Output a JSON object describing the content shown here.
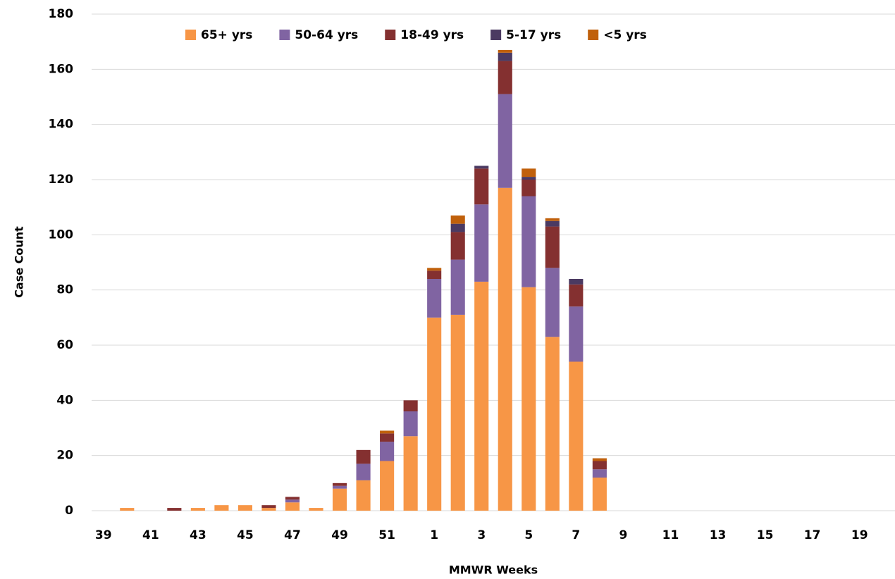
{
  "chart_data": {
    "type": "stacked_bar",
    "xlabel": "MMWR Weeks",
    "ylabel": "Case Count",
    "categories": [
      "39",
      null,
      "41",
      null,
      "43",
      null,
      "45",
      null,
      "47",
      null,
      "49",
      null,
      "51",
      null,
      "1",
      null,
      "3",
      null,
      "5",
      null,
      "7",
      null,
      "9",
      null,
      "11",
      null,
      "13",
      null,
      "15",
      null,
      "17",
      null,
      "19",
      null
    ],
    "series": [
      {
        "name": "65+ yrs",
        "color": "#f79646",
        "values": [
          0,
          1,
          0,
          0,
          1,
          2,
          2,
          1,
          3,
          1,
          8,
          11,
          18,
          27,
          70,
          71,
          83,
          117,
          81,
          63,
          54,
          12,
          0,
          0,
          0,
          0,
          0,
          0,
          0,
          0,
          0,
          0,
          0,
          0
        ]
      },
      {
        "name": "50-64 yrs",
        "color": "#8064a2",
        "values": [
          0,
          0,
          0,
          0,
          0,
          0,
          0,
          0,
          1,
          0,
          1,
          6,
          7,
          9,
          14,
          20,
          28,
          34,
          33,
          25,
          20,
          3,
          0,
          0,
          0,
          0,
          0,
          0,
          0,
          0,
          0,
          0,
          0,
          0
        ]
      },
      {
        "name": "18-49 yrs",
        "color": "#843030",
        "values": [
          0,
          0,
          0,
          1,
          0,
          0,
          0,
          1,
          1,
          0,
          1,
          5,
          3,
          4,
          3,
          10,
          13,
          12,
          6,
          15,
          8,
          3,
          0,
          0,
          0,
          0,
          0,
          0,
          0,
          0,
          0,
          0,
          0,
          0
        ]
      },
      {
        "name": "5-17 yrs",
        "color": "#4b3a62",
        "values": [
          0,
          0,
          0,
          0,
          0,
          0,
          0,
          0,
          0,
          0,
          0,
          0,
          0,
          0,
          0,
          3,
          1,
          3,
          1,
          2,
          2,
          0,
          0,
          0,
          0,
          0,
          0,
          0,
          0,
          0,
          0,
          0,
          0,
          0
        ]
      },
      {
        "name": "<5 yrs",
        "color": "#c0600b",
        "values": [
          0,
          0,
          0,
          0,
          0,
          0,
          0,
          0,
          0,
          0,
          0,
          0,
          1,
          0,
          1,
          3,
          0,
          1,
          3,
          1,
          0,
          1,
          0,
          0,
          0,
          0,
          0,
          0,
          0,
          0,
          0,
          0,
          0,
          0
        ]
      }
    ],
    "ylim": [
      0,
      180
    ],
    "yticks": [
      0,
      20,
      40,
      60,
      80,
      100,
      120,
      140,
      160,
      180
    ],
    "grid": true,
    "legend": "top"
  }
}
